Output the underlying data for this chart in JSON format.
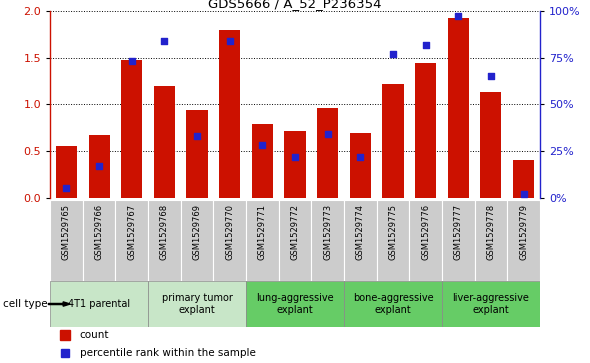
{
  "title": "GDS5666 / A_52_P236354",
  "samples": [
    "GSM1529765",
    "GSM1529766",
    "GSM1529767",
    "GSM1529768",
    "GSM1529769",
    "GSM1529770",
    "GSM1529771",
    "GSM1529772",
    "GSM1529773",
    "GSM1529774",
    "GSM1529775",
    "GSM1529776",
    "GSM1529777",
    "GSM1529778",
    "GSM1529779"
  ],
  "bar_heights": [
    0.55,
    0.67,
    1.47,
    1.2,
    0.94,
    1.8,
    0.79,
    0.72,
    0.96,
    0.69,
    1.22,
    1.44,
    1.92,
    1.13,
    0.41
  ],
  "percentile_ranks": [
    5,
    17,
    73,
    84,
    33,
    84,
    28,
    22,
    34,
    22,
    77,
    82,
    97,
    65,
    2
  ],
  "bar_color": "#cc1100",
  "dot_color": "#2222cc",
  "left_ylim": [
    0,
    2
  ],
  "right_ylim": [
    0,
    100
  ],
  "left_yticks": [
    0,
    0.5,
    1.0,
    1.5,
    2.0
  ],
  "right_yticks": [
    0,
    25,
    50,
    75,
    100
  ],
  "right_yticklabels": [
    "0%",
    "25%",
    "50%",
    "75%",
    "100%"
  ],
  "cell_groups": [
    {
      "label": "4T1 parental",
      "start": 0,
      "end": 2,
      "color": "#c8e6c8"
    },
    {
      "label": "primary tumor\nexplant",
      "start": 3,
      "end": 5,
      "color": "#c8e6c8"
    },
    {
      "label": "lung-aggressive\nexplant",
      "start": 6,
      "end": 8,
      "color": "#66cc66"
    },
    {
      "label": "bone-aggressive\nexplant",
      "start": 9,
      "end": 11,
      "color": "#66cc66"
    },
    {
      "label": "liver-aggressive\nexplant",
      "start": 12,
      "end": 14,
      "color": "#66cc66"
    }
  ],
  "cell_type_label": "cell type",
  "legend_count_label": "count",
  "legend_pct_label": "percentile rank within the sample",
  "sample_box_color": "#cccccc",
  "group_border_color": "#888888",
  "bg_color": "#ffffff"
}
